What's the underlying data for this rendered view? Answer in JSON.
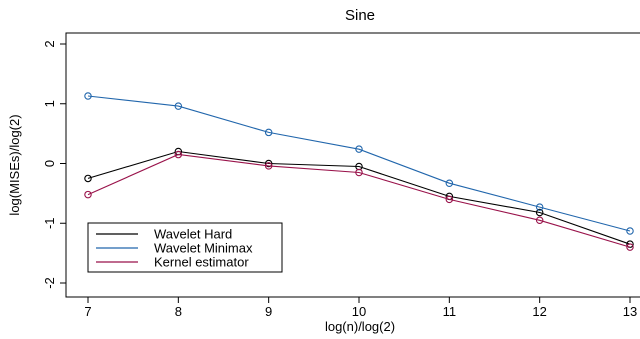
{
  "chart_data": {
    "type": "line",
    "title": "Sine",
    "xlabel": "log(n)/log(2)",
    "ylabel": "log(MISEs)/log(2)",
    "x": [
      7,
      8,
      9,
      10,
      11,
      12,
      13
    ],
    "xlim": [
      7,
      13
    ],
    "ylim": [
      -2,
      2
    ],
    "x_ticks": [
      "7",
      "8",
      "9",
      "10",
      "11",
      "12",
      "13"
    ],
    "y_ticks": [
      "-2",
      "-1",
      "0",
      "1",
      "2"
    ],
    "y_tick_values": [
      -2,
      -1,
      0,
      1,
      2
    ],
    "grid": false,
    "legend_position": "bottom-left",
    "marker": "open-circle",
    "series": [
      {
        "name": "Wavelet Hard",
        "color": "#000000",
        "values": [
          -0.25,
          0.2,
          0.0,
          -0.05,
          -0.55,
          -0.82,
          -1.35
        ]
      },
      {
        "name": "Wavelet Minimax",
        "color": "#2166ac",
        "values": [
          1.13,
          0.96,
          0.52,
          0.24,
          -0.33,
          -0.73,
          -1.13
        ]
      },
      {
        "name": "Kernel estimator",
        "color": "#99124a",
        "values": [
          -0.52,
          0.15,
          -0.04,
          -0.15,
          -0.6,
          -0.95,
          -1.4
        ]
      }
    ]
  }
}
